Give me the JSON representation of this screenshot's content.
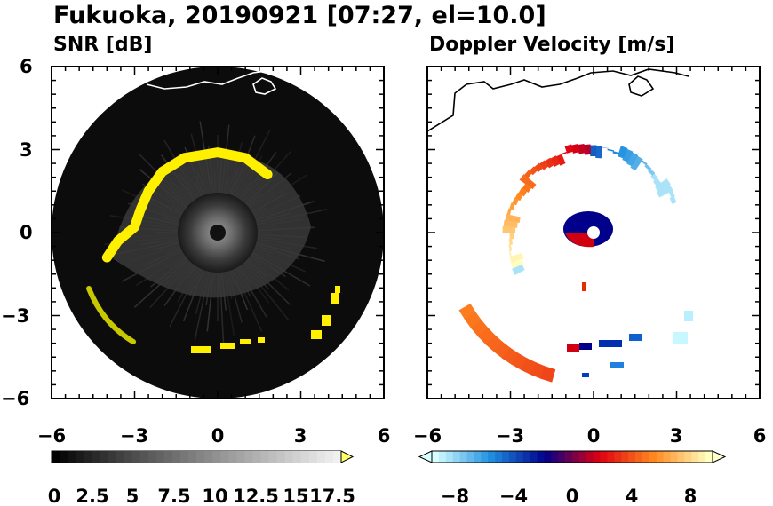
{
  "title": "Fukuoka, 20190921 [07:27, el=10.0]",
  "chart_data": [
    {
      "type": "heatmap",
      "title": "SNR [dB]",
      "xlim": [
        -6,
        6
      ],
      "ylim": [
        -6,
        6
      ],
      "xticks": [
        "−6",
        "−3",
        "0",
        "3",
        "6"
      ],
      "yticks": [
        "6",
        "3",
        "0",
        "−3",
        "−6"
      ],
      "colorbar": {
        "min": 0,
        "max": 18,
        "extend": "max",
        "tick_labels": [
          "0",
          "2.5",
          "5",
          "7.5",
          "10",
          "12.5",
          "15",
          "17.5"
        ],
        "colors": [
          "#000000",
          "#ffff66"
        ]
      },
      "features": {
        "echo_ring_radius_km": 3.0,
        "scan_radius_km": 6.0,
        "high_snr_arc": [
          {
            "x": -4.0,
            "y": -0.9
          },
          {
            "x": -3.6,
            "y": -0.3
          },
          {
            "x": -3.0,
            "y": 0.2
          },
          {
            "x": -2.8,
            "y": 0.8
          },
          {
            "x": -2.5,
            "y": 1.5
          },
          {
            "x": -2.0,
            "y": 2.2
          },
          {
            "x": -1.2,
            "y": 2.7
          },
          {
            "x": 0.0,
            "y": 2.9
          },
          {
            "x": 1.0,
            "y": 2.7
          },
          {
            "x": 1.8,
            "y": 2.1
          }
        ]
      }
    },
    {
      "type": "heatmap",
      "title": "Doppler Velocity [m/s]",
      "xlim": [
        -6,
        6
      ],
      "ylim": [
        -6,
        6
      ],
      "xticks": [
        "−6",
        "−3",
        "0",
        "3",
        "6"
      ],
      "yticks": [
        "6",
        "3",
        "0",
        "−3",
        "−6"
      ],
      "colorbar": {
        "min": -10,
        "max": 10,
        "extend": "both",
        "tick_labels": [
          "−8",
          "−4",
          "0",
          "4",
          "8"
        ],
        "colors": [
          "#d8ffff",
          "#2090e0",
          "#00008a",
          "#e00010",
          "#ff8a20",
          "#ffffc0"
        ]
      },
      "features": {
        "near_core_radius_km": 0.8,
        "echo_ring_radius_km": 3.0
      }
    }
  ]
}
